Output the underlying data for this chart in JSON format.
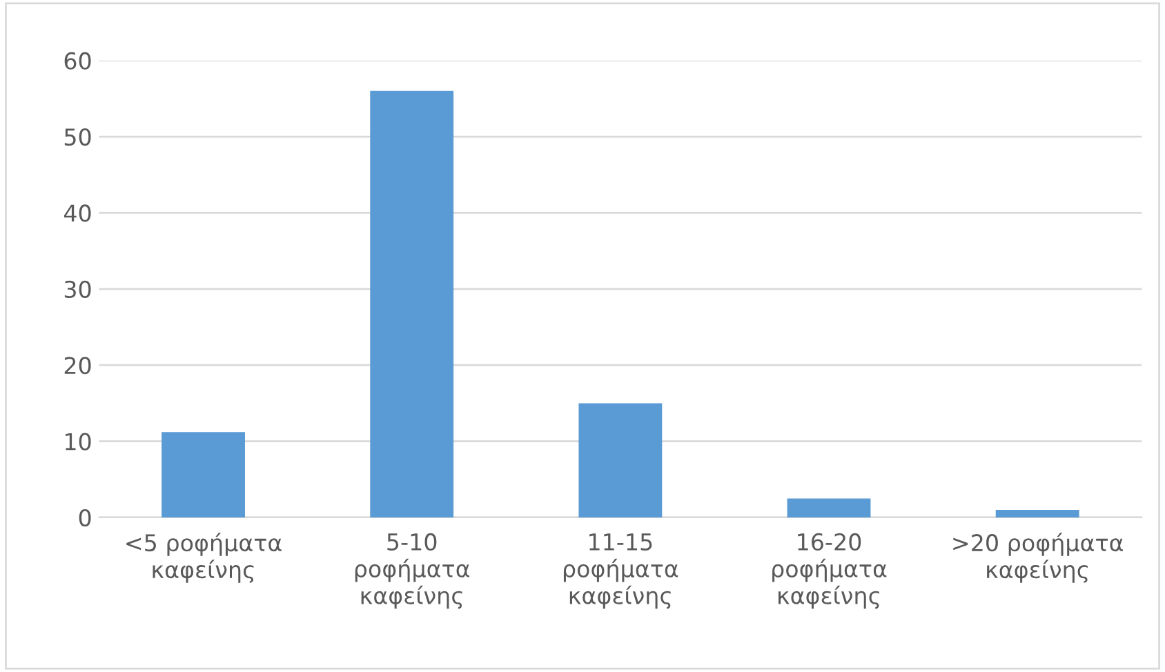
{
  "chart_data": {
    "type": "bar",
    "categories": [
      "<5 ροφήματα\nκαφείνης",
      "5-10\nροφήματα\nκαφείνης",
      "11-15\nροφήματα\nκαφείνης",
      "16-20\nροφήματα\nκαφείνης",
      ">20 ροφήματα\nκαφείνης"
    ],
    "values": [
      11.2,
      56,
      15,
      2.5,
      1
    ],
    "color": "#5b9bd5",
    "ylim": [
      0,
      60
    ],
    "yticks": [
      0,
      10,
      20,
      30,
      40,
      50,
      60
    ],
    "grid": "y"
  }
}
